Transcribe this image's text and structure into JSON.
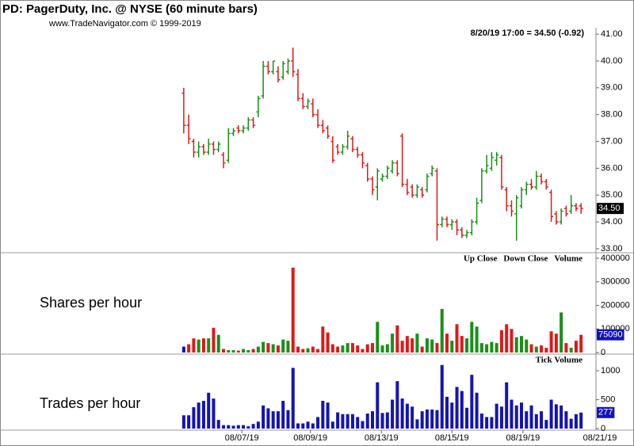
{
  "chart_data": [
    {
      "type": "ohlc",
      "title": "PD:  PagerDuty, Inc. @ NYSE  (60 minute bars)",
      "subtitle": "www.TradeNavigator.com © 1999-2019",
      "quote": "8/20/19 17:00 = 34.50 (-0.92)",
      "up_color": "#189018",
      "down_color": "#e01818",
      "open": [
        38.8,
        37.6,
        37.0,
        36.6,
        36.8,
        36.6,
        36.9,
        36.7,
        36.5,
        36.3,
        37.3,
        37.5,
        37.4,
        37.5,
        37.8,
        38.1,
        38.7,
        39.8,
        39.6,
        39.6,
        39.4,
        39.6,
        40.0,
        39.5,
        38.6,
        38.3,
        38.4,
        38.0,
        37.6,
        37.5,
        37.0,
        36.8,
        36.6,
        36.8,
        37.1,
        36.7,
        36.5,
        36.1,
        35.6,
        35.3,
        35.6,
        35.7,
        35.9,
        36.2,
        37.2,
        35.4,
        35.3,
        35.0,
        35.2,
        35.2,
        35.8,
        35.9,
        33.9,
        34.1,
        33.9,
        34.0,
        33.7,
        33.5,
        33.6,
        34.0,
        34.8,
        35.9,
        36.0,
        36.3,
        36.4,
        35.2,
        34.6,
        34.3,
        34.6,
        35.2,
        35.4,
        35.3,
        35.7,
        35.5,
        35.1,
        34.3,
        34.0,
        34.5,
        34.4,
        34.6,
        34.6
      ],
      "high": [
        39.0,
        38.0,
        37.1,
        37.0,
        36.9,
        37.1,
        37.0,
        37.0,
        36.6,
        37.5,
        37.5,
        37.6,
        37.6,
        37.9,
        37.9,
        38.7,
        40.0,
        40.0,
        40.0,
        39.8,
        40.0,
        40.1,
        40.5,
        39.7,
        38.8,
        38.6,
        38.6,
        38.2,
        37.8,
        37.6,
        37.2,
        36.9,
        36.9,
        37.4,
        37.2,
        36.8,
        36.6,
        36.2,
        35.7,
        36.0,
        35.8,
        36.1,
        36.3,
        36.3,
        37.3,
        35.6,
        35.4,
        35.4,
        35.3,
        35.8,
        36.1,
        36.0,
        34.2,
        34.2,
        34.1,
        34.1,
        33.8,
        33.7,
        34.1,
        34.9,
        36.0,
        36.5,
        36.6,
        36.6,
        36.5,
        35.3,
        34.8,
        35.0,
        35.3,
        35.5,
        35.6,
        35.9,
        35.8,
        35.6,
        35.2,
        34.4,
        34.5,
        34.6,
        35.0,
        34.7,
        34.7
      ],
      "low": [
        37.3,
        36.9,
        36.4,
        36.4,
        36.5,
        36.5,
        36.5,
        36.6,
        36.0,
        36.2,
        37.2,
        37.3,
        37.3,
        37.4,
        37.5,
        37.9,
        38.6,
        39.5,
        39.5,
        39.2,
        39.3,
        39.5,
        39.4,
        38.5,
        38.2,
        38.2,
        37.9,
        37.5,
        37.3,
        37.1,
        36.2,
        36.5,
        36.5,
        36.7,
        36.6,
        36.4,
        36.0,
        35.5,
        35.0,
        34.8,
        35.5,
        35.6,
        35.8,
        35.7,
        35.3,
        35.0,
        34.9,
        34.9,
        34.9,
        35.1,
        35.7,
        33.3,
        33.8,
        33.8,
        33.7,
        33.5,
        33.4,
        33.4,
        33.5,
        33.9,
        34.7,
        35.8,
        35.9,
        36.1,
        35.2,
        34.4,
        34.2,
        33.3,
        34.5,
        35.0,
        35.2,
        35.2,
        35.4,
        35.2,
        34.0,
        33.9,
        33.9,
        34.2,
        34.3,
        34.4,
        34.3
      ],
      "close": [
        37.6,
        37.1,
        36.6,
        36.8,
        36.6,
        36.9,
        36.7,
        36.9,
        36.2,
        37.3,
        37.4,
        37.4,
        37.5,
        37.8,
        37.6,
        38.6,
        39.8,
        39.6,
        40.0,
        39.3,
        39.9,
        40.0,
        39.6,
        38.6,
        38.3,
        38.5,
        38.0,
        37.6,
        37.4,
        37.2,
        36.3,
        36.6,
        36.8,
        37.2,
        36.7,
        36.5,
        36.2,
        35.6,
        35.2,
        35.9,
        35.7,
        36.0,
        36.2,
        35.8,
        35.4,
        35.1,
        35.0,
        35.3,
        35.0,
        35.7,
        36.0,
        33.9,
        34.1,
        33.9,
        34.0,
        33.7,
        33.5,
        33.6,
        34.0,
        34.7,
        35.9,
        36.1,
        36.4,
        36.5,
        35.3,
        34.6,
        34.4,
        34.9,
        35.2,
        35.4,
        35.3,
        35.7,
        35.5,
        35.3,
        34.2,
        34.0,
        34.4,
        34.3,
        34.6,
        34.5,
        34.5
      ],
      "last_label": "34.50",
      "xlim": [
        -37,
        83
      ],
      "ylim": [
        32.88,
        41.24
      ],
      "yticks": [
        {
          "value": 33,
          "label": "33.00"
        },
        {
          "value": 34,
          "label": "34.00"
        },
        {
          "value": 35,
          "label": "35.00"
        },
        {
          "value": 36,
          "label": "36.00"
        },
        {
          "value": 37,
          "label": "37.00"
        },
        {
          "value": 38,
          "label": "38.00"
        },
        {
          "value": 39,
          "label": "39.00"
        },
        {
          "value": 40,
          "label": "40.00"
        },
        {
          "value": 41,
          "label": "41.00"
        }
      ]
    },
    {
      "type": "bar",
      "annotation": "Shares per hour",
      "legend": [
        {
          "name": "Up Close",
          "color": "#189018"
        },
        {
          "name": "Down Close",
          "color": "#e01818"
        },
        {
          "name": "Volume",
          "color": "#1414b4"
        }
      ],
      "series": [
        {
          "name": "Volume",
          "color": "#1414b4",
          "values": [
            25000,
            35000,
            60000,
            55000,
            60000,
            60000,
            105000,
            75000,
            15000,
            10000,
            10000,
            8000,
            15000,
            10000,
            15000,
            25000,
            45000,
            40000,
            35000,
            30000,
            55000,
            50000,
            360000,
            25000,
            15000,
            18000,
            25000,
            15000,
            110000,
            85000,
            35000,
            25000,
            30000,
            40000,
            40000,
            30000,
            15000,
            35000,
            40000,
            130000,
            30000,
            35000,
            80000,
            115000,
            50000,
            70000,
            60000,
            80000,
            25000,
            60000,
            55000,
            40000,
            185000,
            80000,
            50000,
            120000,
            70000,
            60000,
            130000,
            110000,
            40000,
            35000,
            45000,
            40000,
            95000,
            120000,
            100000,
            65000,
            70000,
            55000,
            35000,
            25000,
            30000,
            20000,
            90000,
            80000,
            170000,
            40000,
            20000,
            50000,
            75090
          ]
        }
      ],
      "xlim": [
        -37,
        83
      ],
      "ylim": [
        -3400,
        420000
      ],
      "yticks": [
        0,
        100000,
        200000,
        300000,
        400000
      ]
    },
    {
      "type": "bar",
      "annotation": "Trades per hour",
      "legend": [
        {
          "name": "Tick Volume",
          "color": "#1414b4"
        }
      ],
      "series": [
        {
          "name": "Tick Volume",
          "color": "#1414b4",
          "values": [
            230,
            230,
            370,
            450,
            480,
            620,
            520,
            150,
            60,
            60,
            50,
            60,
            60,
            40,
            80,
            120,
            400,
            350,
            300,
            300,
            480,
            320,
            1050,
            90,
            90,
            120,
            90,
            200,
            480,
            450,
            120,
            280,
            250,
            250,
            250,
            200,
            130,
            260,
            300,
            800,
            270,
            280,
            500,
            820,
            520,
            430,
            380,
            160,
            300,
            330,
            330,
            320,
            1100,
            550,
            450,
            720,
            650,
            360,
            930,
            620,
            260,
            200,
            200,
            430,
            380,
            800,
            500,
            400,
            450,
            300,
            400,
            250,
            300,
            150,
            500,
            420,
            400,
            300,
            170,
            250,
            277
          ]
        }
      ],
      "xlim": [
        -37,
        83
      ],
      "ylim": [
        -27,
        1274
      ],
      "yticks": [
        0,
        500,
        1000
      ],
      "xticks": [
        {
          "value": 11.7,
          "label": "08/07/19"
        },
        {
          "value": 25.5,
          "label": "08/09/19"
        },
        {
          "value": 39.8,
          "label": "08/13/19"
        },
        {
          "value": 54,
          "label": "08/15/19"
        },
        {
          "value": 68.3,
          "label": "08/19/19"
        },
        {
          "value": 83.8,
          "label": "08/21/19"
        }
      ]
    }
  ]
}
